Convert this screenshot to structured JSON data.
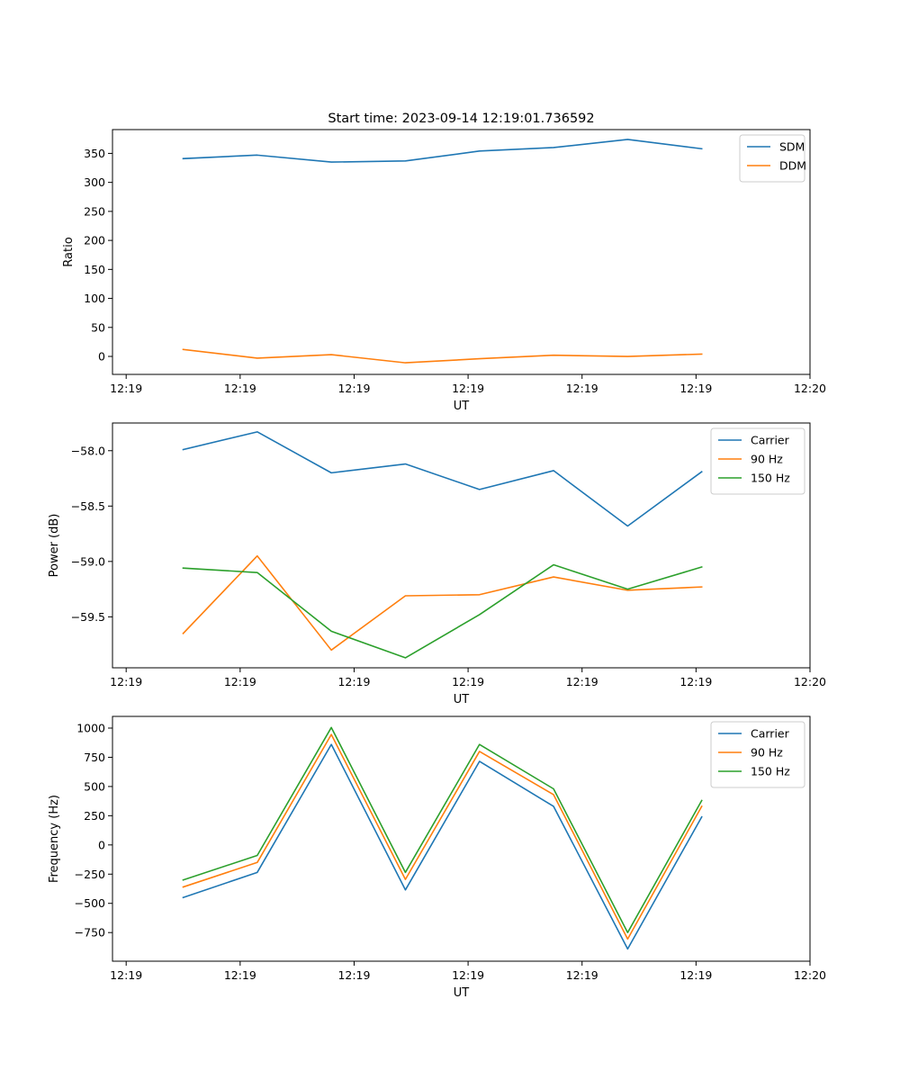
{
  "figure": {
    "title": "Start time: 2023-09-14 12:19:01.736592"
  },
  "colors": {
    "blue": "#1f77b4",
    "orange": "#ff7f0e",
    "green": "#2ca02c"
  },
  "chart_data": [
    {
      "type": "line",
      "title": "Start time: 2023-09-14 12:19:01.736592",
      "xlabel": "UT",
      "ylabel": "Ratio",
      "x_tick_labels": [
        "12:19",
        "12:19",
        "12:19",
        "12:19",
        "12:19",
        "12:19",
        "12:20"
      ],
      "x_tick_positions": [
        0,
        1,
        2,
        3,
        4,
        5,
        6
      ],
      "xlim": [
        -0.12,
        6.0
      ],
      "x": [
        0.5,
        1.15,
        1.8,
        2.45,
        3.1,
        3.75,
        4.4,
        5.05
      ],
      "ylim": [
        -31,
        391
      ],
      "y_ticks": [
        0,
        50,
        100,
        150,
        200,
        250,
        300,
        350
      ],
      "y_tick_labels": [
        "0",
        "50",
        "100",
        "150",
        "200",
        "250",
        "300",
        "350"
      ],
      "legend_position": "upper right",
      "series": [
        {
          "name": "SDM",
          "color": "#1f77b4",
          "values": [
            341,
            347,
            335,
            337,
            354,
            360,
            374,
            358
          ]
        },
        {
          "name": "DDM",
          "color": "#ff7f0e",
          "values": [
            12,
            -3,
            3,
            -11,
            -4,
            2,
            0,
            4
          ]
        }
      ]
    },
    {
      "type": "line",
      "xlabel": "UT",
      "ylabel": "Power (dB)",
      "x_tick_labels": [
        "12:19",
        "12:19",
        "12:19",
        "12:19",
        "12:19",
        "12:19",
        "12:20"
      ],
      "x_tick_positions": [
        0,
        1,
        2,
        3,
        4,
        5,
        6
      ],
      "xlim": [
        -0.12,
        6.0
      ],
      "x": [
        0.5,
        1.15,
        1.8,
        2.45,
        3.1,
        3.75,
        4.4,
        5.05
      ],
      "ylim": [
        -59.96,
        -57.75
      ],
      "y_ticks": [
        -59.5,
        -59.0,
        -58.5,
        -58.0
      ],
      "y_tick_labels": [
        "−59.5",
        "−59.0",
        "−58.5",
        "−58.0"
      ],
      "legend_position": "upper right",
      "series": [
        {
          "name": "Carrier",
          "color": "#1f77b4",
          "values": [
            -57.99,
            -57.83,
            -58.2,
            -58.12,
            -58.35,
            -58.18,
            -58.68,
            -58.19
          ]
        },
        {
          "name": "90 Hz",
          "color": "#ff7f0e",
          "values": [
            -59.65,
            -58.95,
            -59.8,
            -59.31,
            -59.3,
            -59.14,
            -59.26,
            -59.23
          ]
        },
        {
          "name": "150 Hz",
          "color": "#2ca02c",
          "values": [
            -59.06,
            -59.1,
            -59.63,
            -59.87,
            -59.48,
            -59.03,
            -59.25,
            -59.05
          ]
        }
      ]
    },
    {
      "type": "line",
      "xlabel": "UT",
      "ylabel": "Frequency (Hz)",
      "x_tick_labels": [
        "12:19",
        "12:19",
        "12:19",
        "12:19",
        "12:19",
        "12:19",
        "12:20"
      ],
      "x_tick_positions": [
        0,
        1,
        2,
        3,
        4,
        5,
        6
      ],
      "xlim": [
        -0.12,
        6.0
      ],
      "x": [
        0.5,
        1.15,
        1.8,
        2.45,
        3.1,
        3.75,
        4.4,
        5.05
      ],
      "ylim": [
        -995,
        1100
      ],
      "y_ticks": [
        -750,
        -500,
        -250,
        0,
        250,
        500,
        750,
        1000
      ],
      "y_tick_labels": [
        "−750",
        "−500",
        "−250",
        "0",
        "250",
        "500",
        "750",
        "1000"
      ],
      "legend_position": "upper right",
      "series": [
        {
          "name": "Carrier",
          "color": "#1f77b4",
          "values": [
            -450,
            -235,
            860,
            -385,
            715,
            330,
            -890,
            240
          ]
        },
        {
          "name": "90 Hz",
          "color": "#ff7f0e",
          "values": [
            -360,
            -150,
            945,
            -295,
            800,
            430,
            -805,
            330
          ]
        },
        {
          "name": "150 Hz",
          "color": "#2ca02c",
          "values": [
            -300,
            -90,
            1005,
            -235,
            860,
            480,
            -750,
            380
          ]
        }
      ]
    }
  ]
}
